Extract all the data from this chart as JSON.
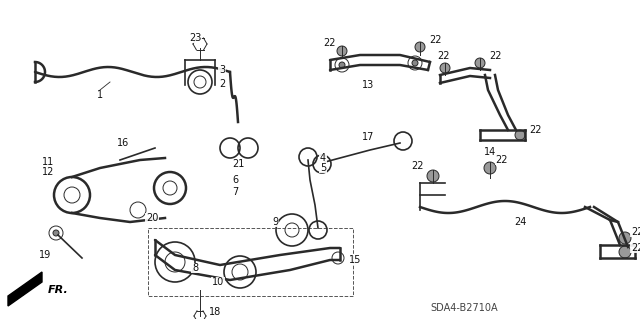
{
  "bg_color": "#ffffff",
  "fig_width": 6.4,
  "fig_height": 3.19,
  "dpi": 100,
  "label_fontsize": 7.0,
  "label_color": "#111111",
  "diagram_code": "SDA4-B2710A",
  "fr_text": "FR.",
  "line_color": "#2a2a2a",
  "lw_thick": 1.8,
  "lw_med": 1.2,
  "lw_thin": 0.7
}
